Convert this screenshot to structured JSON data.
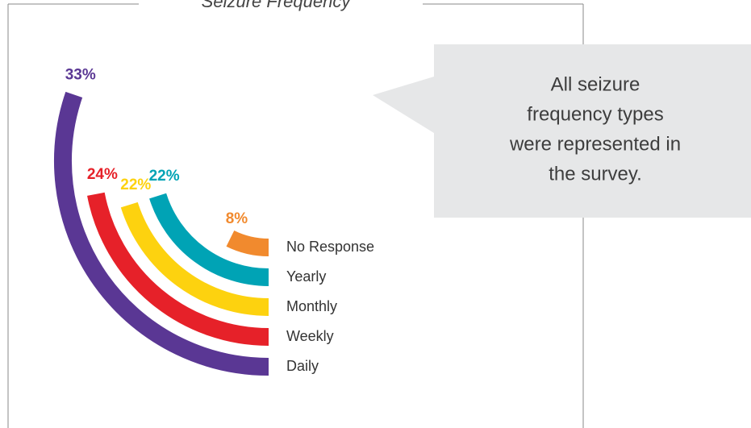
{
  "chart_data": {
    "type": "radial_bar",
    "title": "Seizure Frequency",
    "categories": [
      "Daily",
      "Weekly",
      "Monthly",
      "Yearly",
      "No Response"
    ],
    "values": [
      33,
      24,
      22,
      22,
      8
    ],
    "value_labels": [
      "33%",
      "24%",
      "22%",
      "22%",
      "8%"
    ],
    "colors": [
      "#5a3794",
      "#e62129",
      "#fdd20f",
      "#00a3b5",
      "#f18a2e"
    ],
    "annotation": [
      "All seizure",
      "frequency types",
      "were represented in",
      "the survey."
    ]
  }
}
